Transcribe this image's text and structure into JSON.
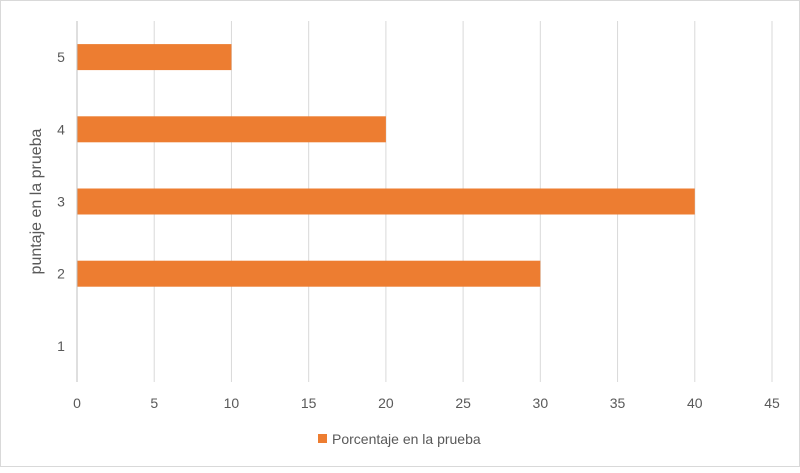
{
  "chart_data": {
    "type": "bar",
    "orientation": "horizontal",
    "categories": [
      "1",
      "2",
      "3",
      "4",
      "5"
    ],
    "series": [
      {
        "name": "Porcentaje en la prueba",
        "values": [
          0,
          30,
          40,
          20,
          10
        ],
        "color": "#ed7d31"
      }
    ],
    "title": "",
    "xlabel": "",
    "ylabel": "puntaje en la prueba",
    "xlim": [
      0,
      45
    ],
    "xticks": [
      0,
      5,
      10,
      15,
      20,
      25,
      30,
      35,
      40,
      45
    ],
    "grid": true,
    "legend_position": "bottom"
  }
}
